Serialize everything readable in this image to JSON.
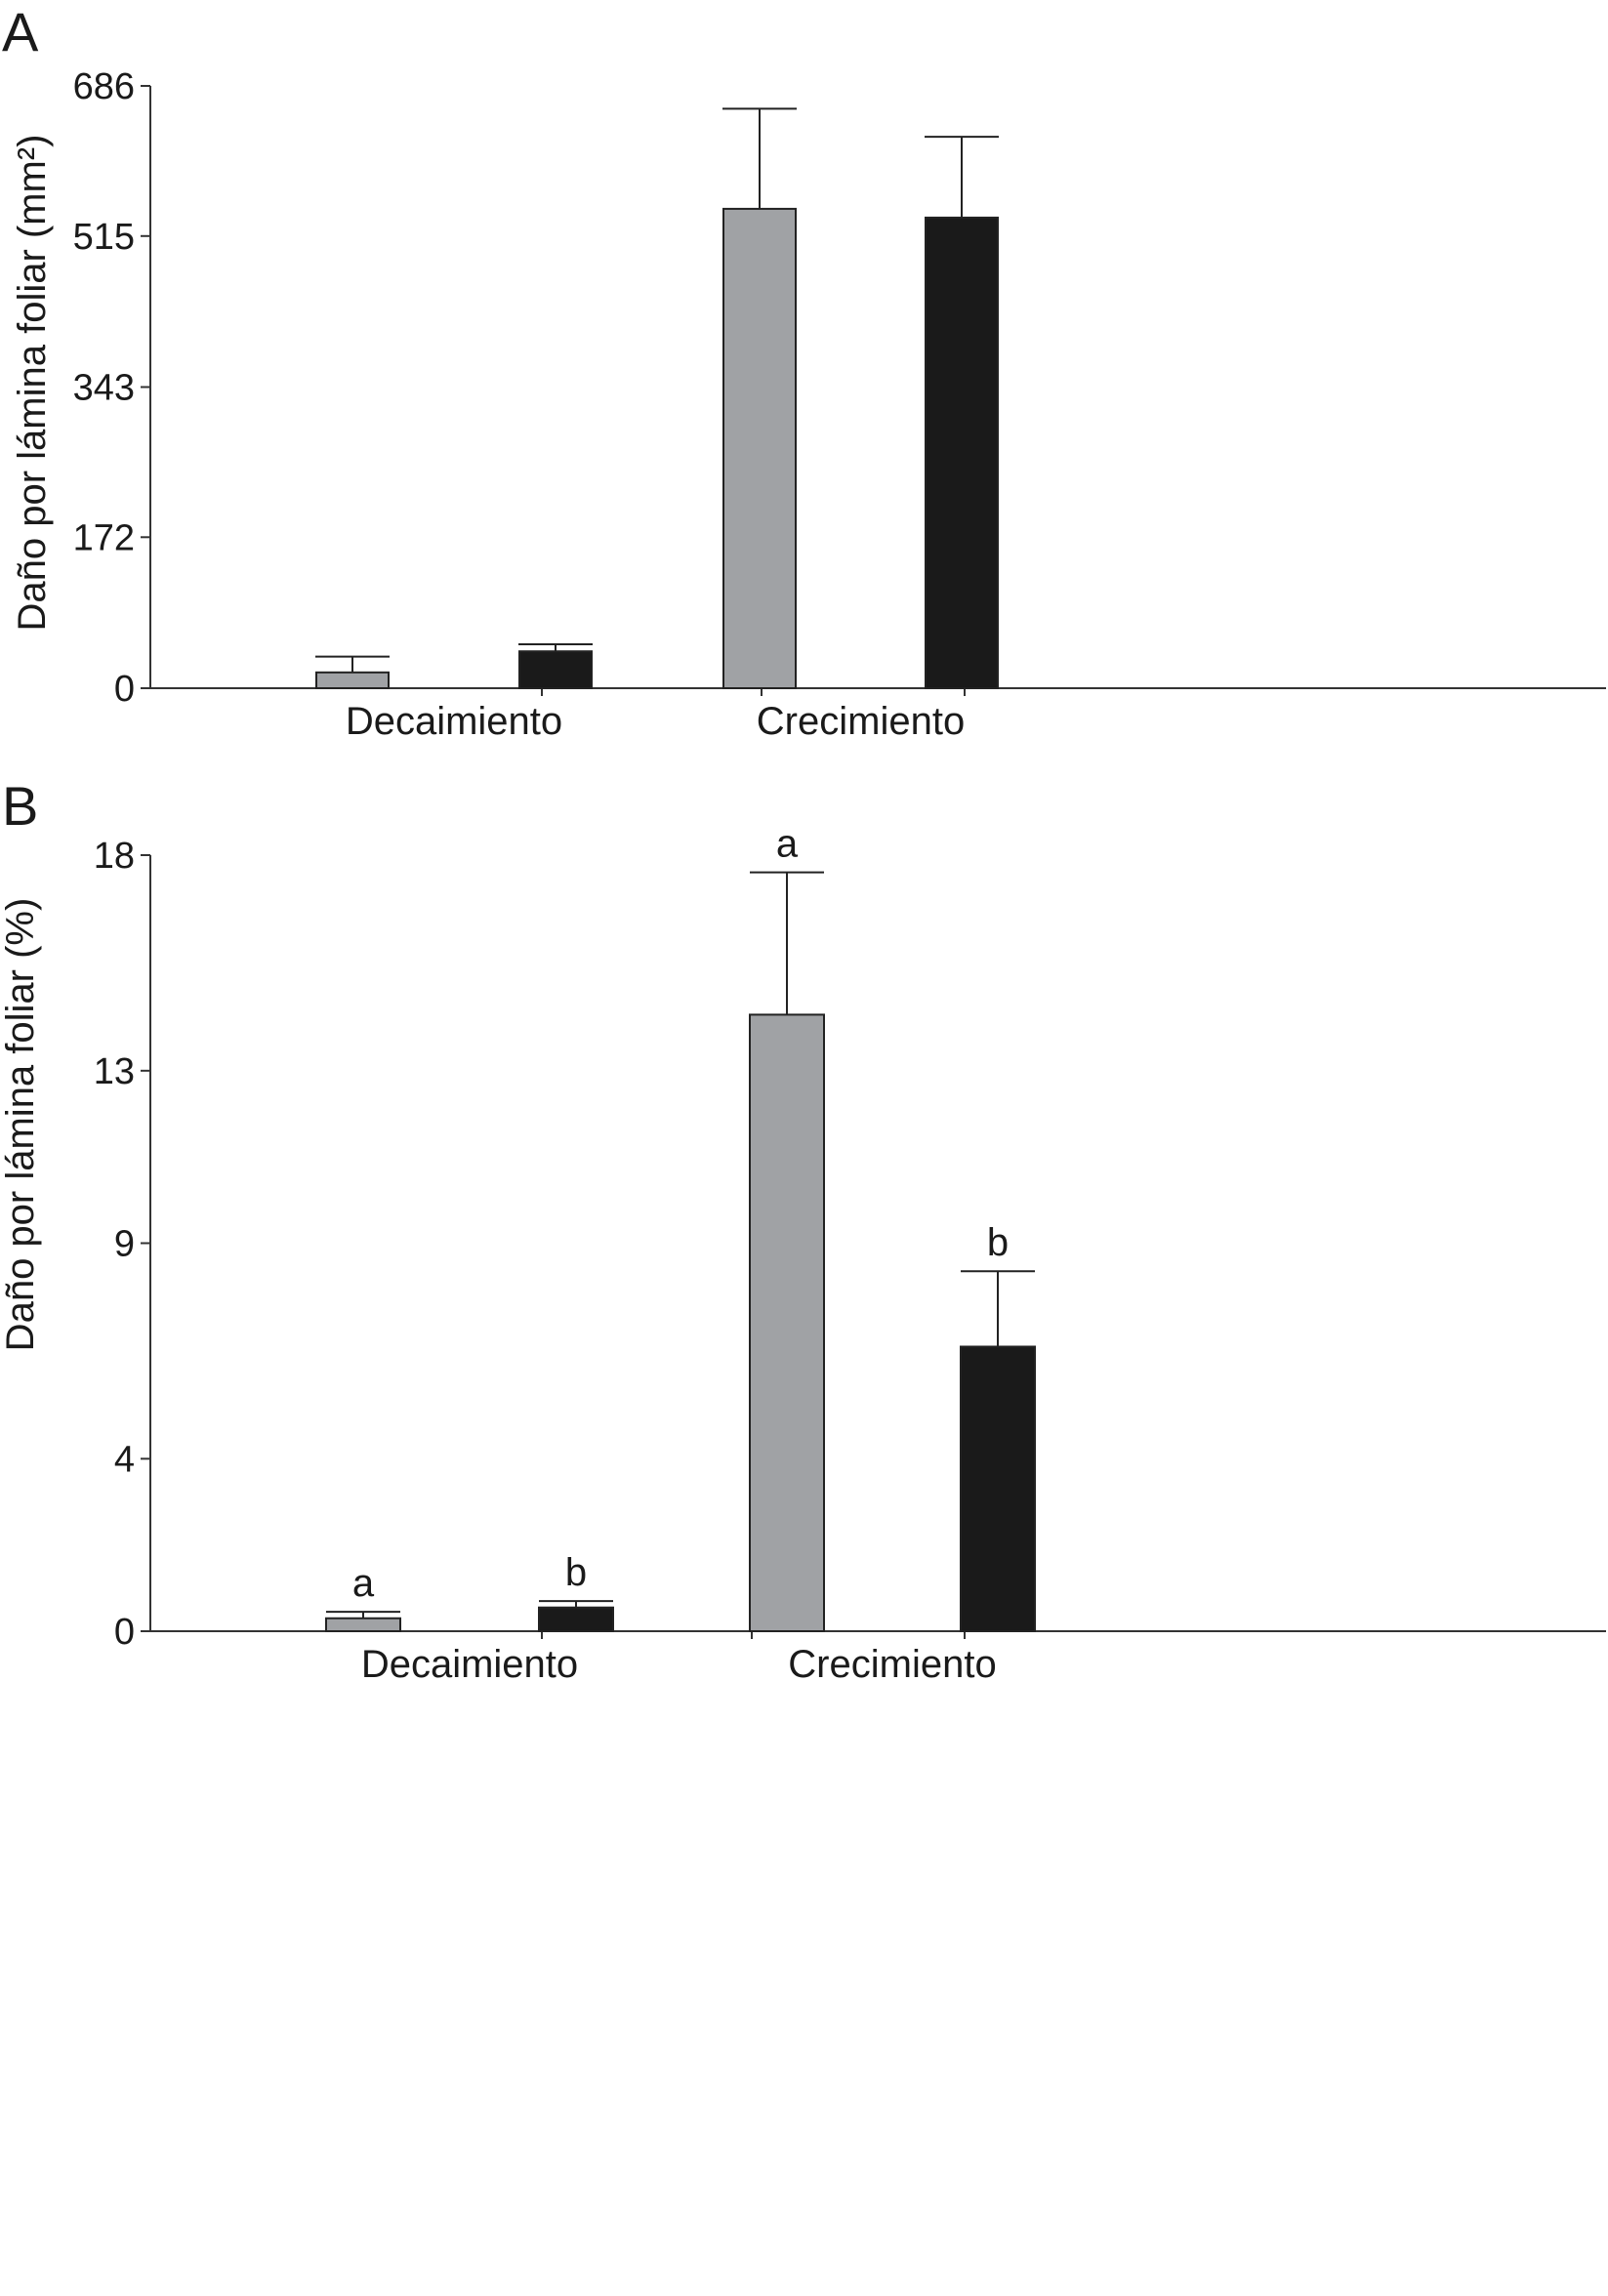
{
  "chart_data": [
    {
      "type": "bar",
      "panel_label": "A",
      "ylabel": "Daño por lámina foliar (mm²)",
      "yticks": [
        0,
        172,
        343,
        515,
        686
      ],
      "ylim": [
        0,
        686
      ],
      "categories": [
        "Decaimiento",
        "Crecimiento"
      ],
      "grid": false,
      "colors": [
        "#a0a2a5",
        "#1a1a1a"
      ],
      "series": [
        {
          "values": [
            18,
            546
          ],
          "errors": [
            18,
            114
          ]
        },
        {
          "values": [
            42,
            536
          ],
          "errors": [
            8,
            92
          ]
        }
      ]
    },
    {
      "type": "bar",
      "panel_label": "B",
      "ylabel": "Daño por lámina foliar (%)",
      "yticks": [
        0,
        4,
        9,
        13,
        18
      ],
      "ylim": [
        0,
        18
      ],
      "categories": [
        "Decaimiento",
        "Crecimiento"
      ],
      "grid": false,
      "colors": [
        "#a0a2a5",
        "#1a1a1a"
      ],
      "series": [
        {
          "values": [
            0.3,
            14.3
          ],
          "errors": [
            0.15,
            3.3
          ],
          "significance": [
            "a",
            "a"
          ]
        },
        {
          "values": [
            0.55,
            6.6
          ],
          "errors": [
            0.15,
            1.75
          ],
          "significance": [
            "b",
            "b"
          ]
        }
      ]
    }
  ]
}
